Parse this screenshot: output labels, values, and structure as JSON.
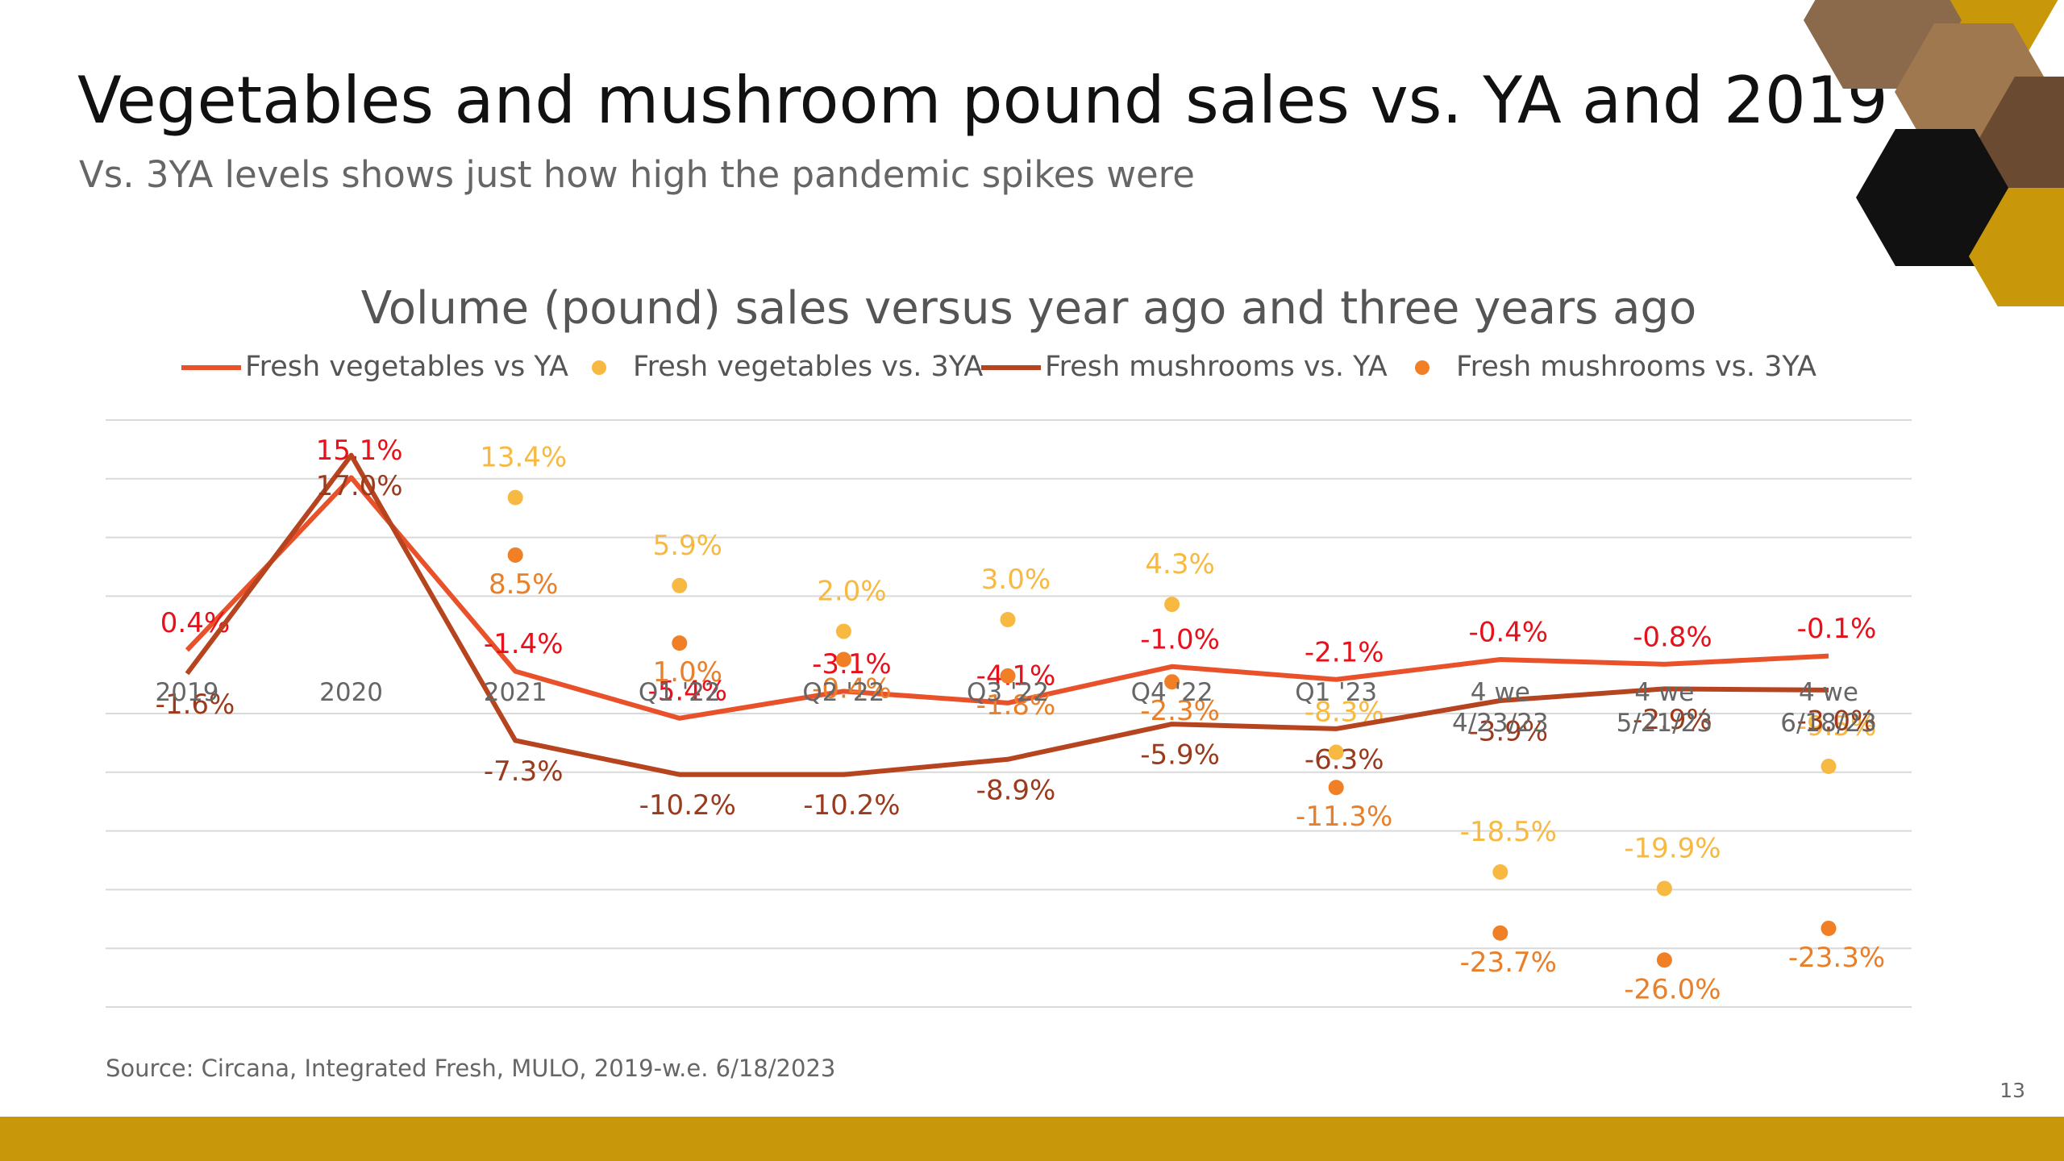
{
  "header": {
    "title": "Vegetables and mushroom pound sales vs. YA and 2019",
    "subtitle": "Vs. 3YA levels shows just how high the pandemic spikes were"
  },
  "chart_data": {
    "type": "line",
    "title": "Volume (pound) sales versus year ago and three years ago",
    "categories": [
      "2019",
      "2020",
      "2021",
      "Q1 '22",
      "Q2 '22",
      "Q3 '22",
      "Q4 '22",
      "Q1 '23",
      "4 we\n4/23/23",
      "4 we\n5/21/23",
      "4 we\n6/18/23"
    ],
    "ylim": [
      -30,
      20
    ],
    "yticks": [
      -30,
      -25,
      -20,
      -15,
      -10,
      -5,
      5,
      10,
      15,
      20
    ],
    "grid": true,
    "legend": "top",
    "series": [
      {
        "name": "Fresh vegetables vs YA",
        "mark": "line",
        "color": "#e8512a",
        "label_color": "#e8101a",
        "values": [
          0.4,
          15.1,
          -1.4,
          -5.4,
          -3.1,
          -4.1,
          -1.0,
          -2.1,
          -0.4,
          -0.8,
          -0.1
        ],
        "value_labels": [
          "0.4%",
          "15.1%",
          "-1.4%",
          "-5.4%",
          "-3.1%",
          "-4.1%",
          "-1.0%",
          "-2.1%",
          "-0.4%",
          "-0.8%",
          "-0.1%"
        ]
      },
      {
        "name": "Fresh vegetables vs. 3YA",
        "mark": "dot",
        "color": "#f7b941",
        "label_color": "#f7b941",
        "values": [
          null,
          null,
          13.4,
          5.9,
          2.0,
          3.0,
          4.3,
          -8.3,
          -18.5,
          -19.9,
          -9.5
        ],
        "value_labels": [
          null,
          null,
          "13.4%",
          "5.9%",
          "2.0%",
          "3.0%",
          "4.3%",
          "-8.3%",
          "-18.5%",
          "-19.9%",
          "-9.5%"
        ]
      },
      {
        "name": "Fresh mushrooms vs. YA",
        "mark": "line",
        "color": "#b5441f",
        "label_color": "#9b3a1c",
        "values": [
          -1.6,
          17.0,
          -7.3,
          -10.2,
          -10.2,
          -8.9,
          -5.9,
          -6.3,
          -3.9,
          -2.9,
          -3.0
        ],
        "value_labels": [
          "-1.6%",
          "17.0%",
          "-7.3%",
          "-10.2%",
          "-10.2%",
          "-8.9%",
          "-5.9%",
          "-6.3%",
          "-3.9%",
          "-2.9%",
          "-3.0%"
        ]
      },
      {
        "name": "Fresh mushrooms vs. 3YA",
        "mark": "dot",
        "color": "#f07f25",
        "label_color": "#e8802b",
        "values": [
          null,
          null,
          8.5,
          1.0,
          -0.4,
          -1.8,
          -2.3,
          -11.3,
          -23.7,
          -26.0,
          -23.3
        ],
        "value_labels": [
          null,
          null,
          "8.5%",
          "1.0%",
          "-0.4%",
          "-1.8%",
          "-2.3%",
          "-11.3%",
          "-23.7%",
          "-26.0%",
          "-23.3%"
        ]
      }
    ]
  },
  "footer": {
    "source": "Source: Circana, Integrated Fresh, MULO, 2019-w.e. 6/18/2023",
    "page": "13"
  }
}
